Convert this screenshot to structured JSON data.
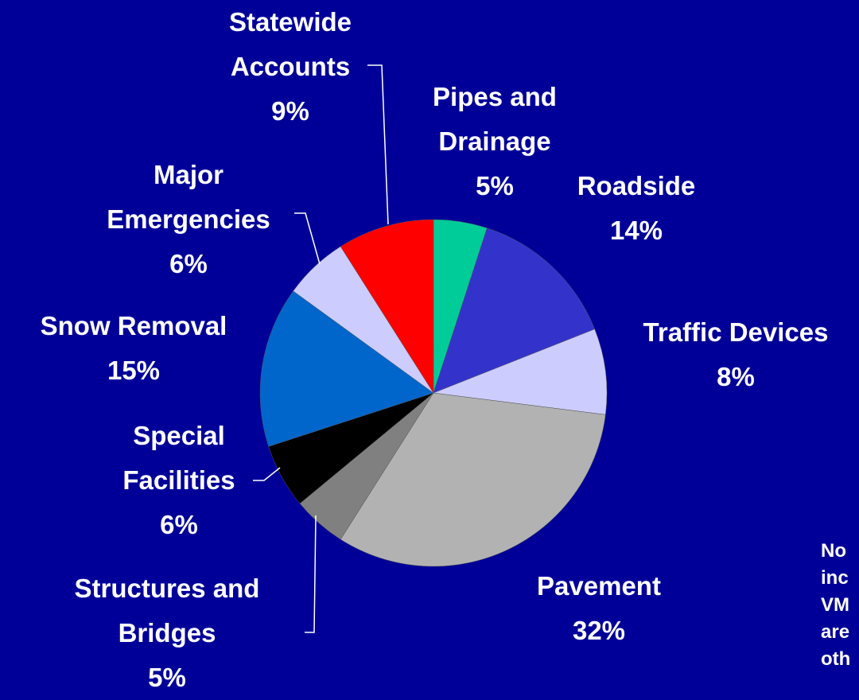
{
  "chart_data": {
    "type": "pie",
    "categories": [
      "Pipes and Drainage",
      "Roadside",
      "Traffic Devices",
      "Pavement",
      "Structures and Bridges",
      "Special Facilities",
      "Snow Removal",
      "Major Emergencies",
      "Statewide Accounts"
    ],
    "values": [
      5,
      14,
      8,
      32,
      5,
      6,
      15,
      6,
      9
    ],
    "value_labels": [
      "5%",
      "14%",
      "8%",
      "32%",
      "5%",
      "6%",
      "15%",
      "6%",
      "9%"
    ],
    "colors": [
      "#00cc99",
      "#3333cc",
      "#ccccff",
      "#b2b2b2",
      "#808080",
      "#000000",
      "#0066cc",
      "#ccccff",
      "#ff0000"
    ],
    "annotation": [
      "No",
      "inc",
      "VM",
      "are",
      "oth"
    ]
  }
}
